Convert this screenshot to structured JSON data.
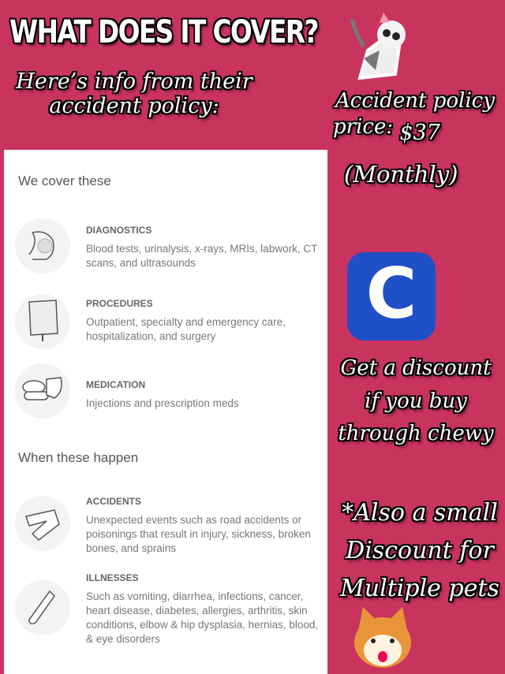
{
  "title": "WHAT DOES IT COVER?",
  "subtitle": "Here’s info from their accident policy:",
  "price": {
    "line1": "Accident policy",
    "label": "price:",
    "amount": "$37",
    "period": "(Monthly)"
  },
  "chewy_logo": {
    "letter": "C",
    "color": "#1f50c7"
  },
  "discount": "Get a discount if you buy through chewy",
  "multi_pet": "*Also a small Discount for Multiple pets",
  "card": {
    "cover_heading": "We cover these",
    "cover_items": [
      {
        "icon": "xray-icon",
        "label": "DIAGNOSTICS",
        "desc": "Blood tests, urinalysis, x-rays, MRIs, labwork, CT scans, and ultrasounds"
      },
      {
        "icon": "iv-bag-icon",
        "label": "PROCEDURES",
        "desc": "Outpatient, specialty and emergency care, hospitalization, and surgery"
      },
      {
        "icon": "pills-icon",
        "label": "MEDICATION",
        "desc": "Injections and prescription meds"
      }
    ],
    "happen_heading": "When these happen",
    "happen_items": [
      {
        "icon": "bandage-icon",
        "label": "ACCIDENTS",
        "desc": "Unexpected events such as road accidents or poisonings that result in injury, sickness, broken bones, and sprains"
      },
      {
        "icon": "thermometer-icon",
        "label": "ILLNESSES",
        "desc": "Such as vomiting, diarrhea, infections, cancer, heart disease, diabetes, allergies, arthritis, skin conditions, elbow & hip dysplasia, hernias, blood, & eye disorders"
      }
    ]
  },
  "colors": {
    "background": "#c9345f",
    "card": "#ffffff"
  }
}
